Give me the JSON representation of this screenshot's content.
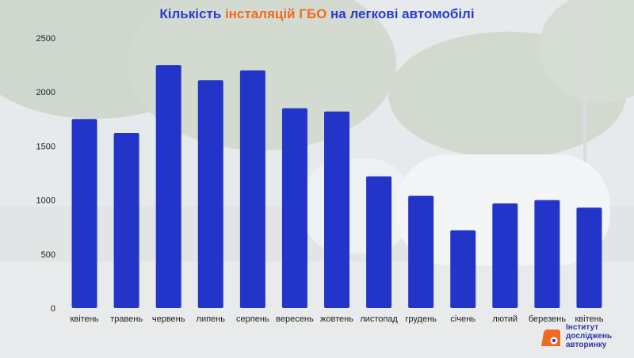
{
  "title": {
    "part1": "Кількість ",
    "highlight": "інсталяцій ГБО",
    "part2": " на легкові автомобілі"
  },
  "colors": {
    "bar": "#2335c8",
    "title": "#2b3bd0",
    "highlight": "#f26a21",
    "axis_text": "#1e1e1e",
    "logo": "#f26a21"
  },
  "chart_data": {
    "type": "bar",
    "categories": [
      "квітень",
      "травень",
      "червень",
      "липень",
      "серпень",
      "вересень",
      "жовтень",
      "листопад",
      "грудень",
      "січень",
      "лютий",
      "березень",
      "квітень"
    ],
    "values": [
      1750,
      1620,
      2250,
      2110,
      2200,
      1850,
      1820,
      1220,
      1040,
      720,
      970,
      1000,
      930
    ],
    "title": "Кількість інсталяцій ГБО на легкові автомобілі",
    "xlabel": "",
    "ylabel": "",
    "ylim": [
      0,
      2500
    ],
    "yticks": [
      0,
      500,
      1000,
      1500,
      2000,
      2500
    ],
    "grid": false,
    "legend": "none"
  },
  "logo": {
    "line1": "Інститут",
    "line2": "досліджень",
    "line3": "авторинку"
  }
}
